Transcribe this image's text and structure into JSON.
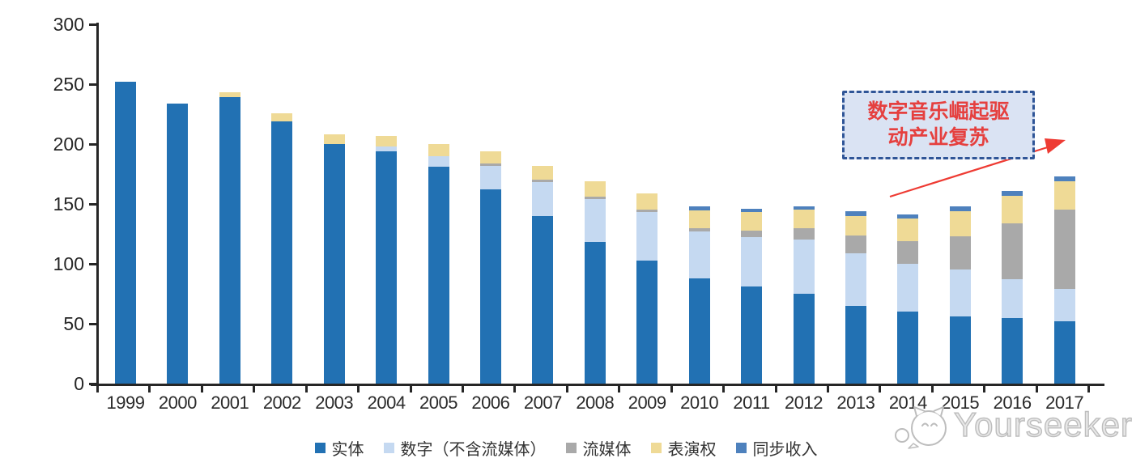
{
  "chart_data": {
    "type": "bar",
    "stacked": true,
    "title": "",
    "categories": [
      "1999",
      "2000",
      "2001",
      "2002",
      "2003",
      "2004",
      "2005",
      "2006",
      "2007",
      "2008",
      "2009",
      "2010",
      "2011",
      "2012",
      "2013",
      "2014",
      "2015",
      "2016",
      "2017"
    ],
    "series": [
      {
        "name": "实体",
        "color": "#2271B3",
        "values": [
          252,
          234,
          239,
          219,
          200,
          194,
          181,
          162,
          140,
          118,
          103,
          88,
          81,
          75,
          65,
          60,
          56,
          55,
          52
        ]
      },
      {
        "name": "数字（不含流媒体）",
        "color": "#C5D9F1",
        "values": [
          0,
          0,
          0,
          0,
          0,
          4,
          9,
          20,
          28,
          36,
          40,
          39,
          41,
          45,
          44,
          40,
          39,
          32,
          27
        ]
      },
      {
        "name": "流媒体",
        "color": "#A9A9A9",
        "values": [
          0,
          0,
          0,
          0,
          0,
          0,
          0,
          2,
          2,
          2,
          2,
          3,
          6,
          10,
          15,
          19,
          28,
          47,
          66
        ]
      },
      {
        "name": "表演权",
        "color": "#EFDA96",
        "values": [
          0,
          0,
          4,
          7,
          8,
          9,
          10,
          10,
          12,
          13,
          14,
          15,
          15,
          15,
          16,
          19,
          21,
          23,
          24
        ]
      },
      {
        "name": "同步收入",
        "color": "#4E81BD",
        "values": [
          0,
          0,
          0,
          0,
          0,
          0,
          0,
          0,
          0,
          0,
          0,
          3,
          3,
          3,
          4,
          3,
          4,
          4,
          4
        ]
      }
    ],
    "ylim": [
      0,
      300
    ],
    "yticks": [
      0,
      50,
      100,
      150,
      200,
      250,
      300
    ],
    "grid": false,
    "legend_position": "bottom"
  },
  "annotation": {
    "lines": [
      "数字音乐崛起驱",
      "动产业复苏"
    ],
    "full_text": "数字音乐崛起驱动产业复苏",
    "text_color": "#E5403F",
    "border_color": "#2F5597",
    "fill_color": "#DAE3F3",
    "arrow_color": "#EE3B33"
  },
  "watermark": {
    "text": "Yourseeker",
    "color": "#BDBDBD",
    "icon": "cat-chat-icon"
  },
  "axis": {
    "color": "#262626"
  }
}
